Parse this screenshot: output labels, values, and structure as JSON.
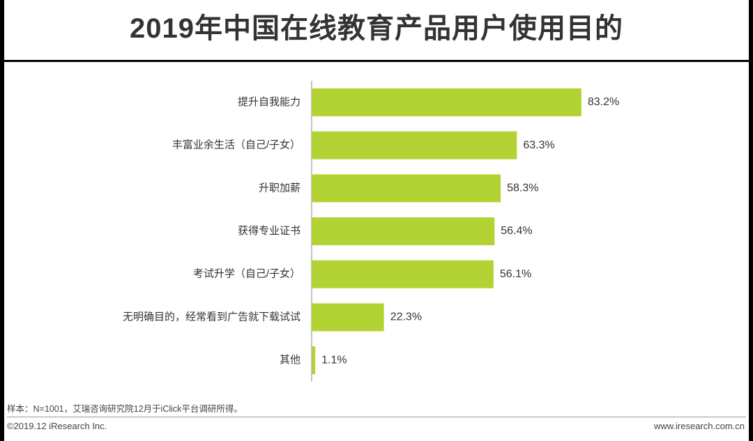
{
  "title": "2019年中国在线教育产品用户使用目的",
  "chart_data": {
    "type": "bar",
    "orientation": "horizontal",
    "title": "2019年中国在线教育产品用户使用目的",
    "categories": [
      "提升自我能力",
      "丰富业余生活（自己/子女）",
      "升职加薪",
      "获得专业证书",
      "考试升学（自己/子女）",
      "无明确目的，经常看到广告就下载试试",
      "其他"
    ],
    "values": [
      83.2,
      63.3,
      58.3,
      56.4,
      56.1,
      22.3,
      1.1
    ],
    "value_labels": [
      "83.2%",
      "63.3%",
      "58.3%",
      "56.4%",
      "56.1%",
      "22.3%",
      "1.1%"
    ],
    "unit": "%",
    "xlim": [
      0,
      100
    ],
    "bar_color": "#b3d335",
    "xlabel": "",
    "ylabel": ""
  },
  "note": "样本：N=1001，艾瑞咨询研究院12月于iClick平台调研所得。",
  "footer": {
    "copyright": "©2019.12 iResearch Inc.",
    "website": "www.iresearch.com.cn"
  }
}
